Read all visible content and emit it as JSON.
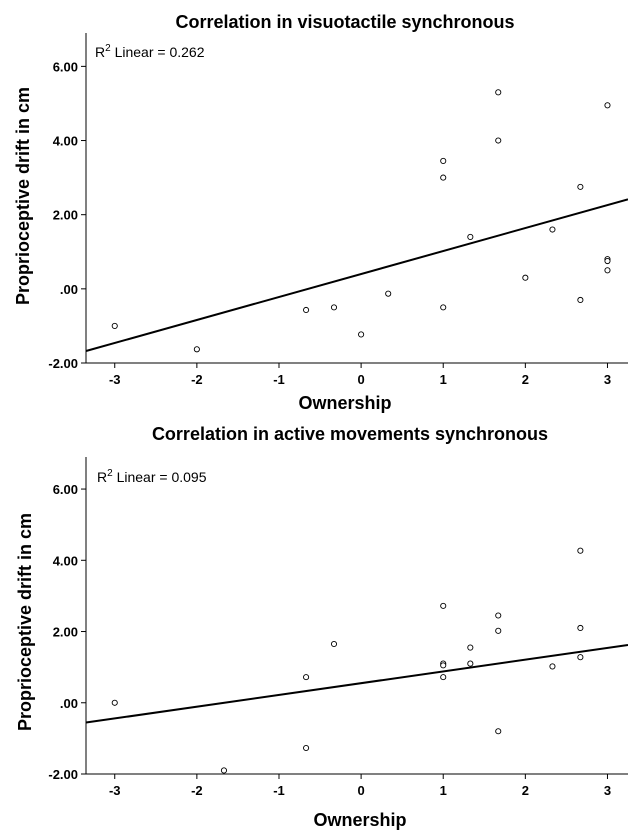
{
  "chart_data": [
    {
      "type": "scatter",
      "title": "Correlation in visuotactile synchronous",
      "xlabel": "Ownership",
      "ylabel": "Proprioceptive drift in cm",
      "annotation": {
        "r2_prefix": "R",
        "r2_sup": "2",
        "r2_text": " Linear = 0.262"
      },
      "xlim": [
        -3.35,
        3.25
      ],
      "ylim": [
        -2.0,
        6.9
      ],
      "xticks": [
        -3,
        -2,
        -1,
        0,
        1,
        2,
        3
      ],
      "xtick_labels": [
        "-3",
        "-2",
        "-1",
        "0",
        "1",
        "2",
        "3"
      ],
      "yticks": [
        -2,
        0,
        2,
        4,
        6
      ],
      "ytick_labels": [
        "-2.00",
        ".00",
        "2.00",
        "4.00",
        "6.00"
      ],
      "grid": false,
      "fit_line": {
        "intercept": 0.4,
        "slope": 0.62
      },
      "points": [
        {
          "x": -3,
          "y": -1.0
        },
        {
          "x": -2,
          "y": -1.63
        },
        {
          "x": -0.67,
          "y": -0.57
        },
        {
          "x": -0.33,
          "y": -0.5
        },
        {
          "x": 0,
          "y": -1.23
        },
        {
          "x": 0.33,
          "y": -0.13
        },
        {
          "x": 1,
          "y": -0.5
        },
        {
          "x": 1,
          "y": 3.0
        },
        {
          "x": 1,
          "y": 3.45
        },
        {
          "x": 1.33,
          "y": 1.4
        },
        {
          "x": 1.67,
          "y": 4.0
        },
        {
          "x": 1.67,
          "y": 5.3
        },
        {
          "x": 2,
          "y": 0.3
        },
        {
          "x": 2.33,
          "y": 1.6
        },
        {
          "x": 2.67,
          "y": 2.75
        },
        {
          "x": 2.67,
          "y": -0.3
        },
        {
          "x": 3,
          "y": 4.95
        },
        {
          "x": 3,
          "y": 0.8
        },
        {
          "x": 3,
          "y": 0.75
        },
        {
          "x": 3,
          "y": 0.5
        }
      ]
    },
    {
      "type": "scatter",
      "title": "Correlation in active movements synchronous",
      "xlabel": "Ownership",
      "ylabel": "Proprioceptive drift in cm",
      "annotation": {
        "r2_prefix": "R",
        "r2_sup": "2",
        "r2_text": " Linear = 0.095"
      },
      "xlim": [
        -3.35,
        3.25
      ],
      "ylim": [
        -2.0,
        6.9
      ],
      "xticks": [
        -3,
        -2,
        -1,
        0,
        1,
        2,
        3
      ],
      "xtick_labels": [
        "-3",
        "-2",
        "-1",
        "0",
        "1",
        "2",
        "3"
      ],
      "yticks": [
        -2,
        0,
        2,
        4,
        6
      ],
      "ytick_labels": [
        "-2.00",
        ".00",
        "2.00",
        "4.00",
        "6.00"
      ],
      "grid": false,
      "fit_line": {
        "intercept": 0.55,
        "slope": 0.33
      },
      "points": [
        {
          "x": -3,
          "y": 0.0
        },
        {
          "x": -1.67,
          "y": -1.9
        },
        {
          "x": -0.67,
          "y": 0.72
        },
        {
          "x": -0.67,
          "y": -1.27
        },
        {
          "x": -0.33,
          "y": 1.65
        },
        {
          "x": 1,
          "y": 2.72
        },
        {
          "x": 1,
          "y": 1.1
        },
        {
          "x": 1,
          "y": 1.05
        },
        {
          "x": 1,
          "y": 0.72
        },
        {
          "x": 1.33,
          "y": 1.55
        },
        {
          "x": 1.33,
          "y": 1.1
        },
        {
          "x": 1.67,
          "y": 2.45
        },
        {
          "x": 1.67,
          "y": 2.02
        },
        {
          "x": 1.67,
          "y": -0.8
        },
        {
          "x": 2.33,
          "y": 1.02
        },
        {
          "x": 2.67,
          "y": 4.27
        },
        {
          "x": 2.67,
          "y": 2.1
        },
        {
          "x": 2.67,
          "y": 1.28
        }
      ]
    }
  ]
}
